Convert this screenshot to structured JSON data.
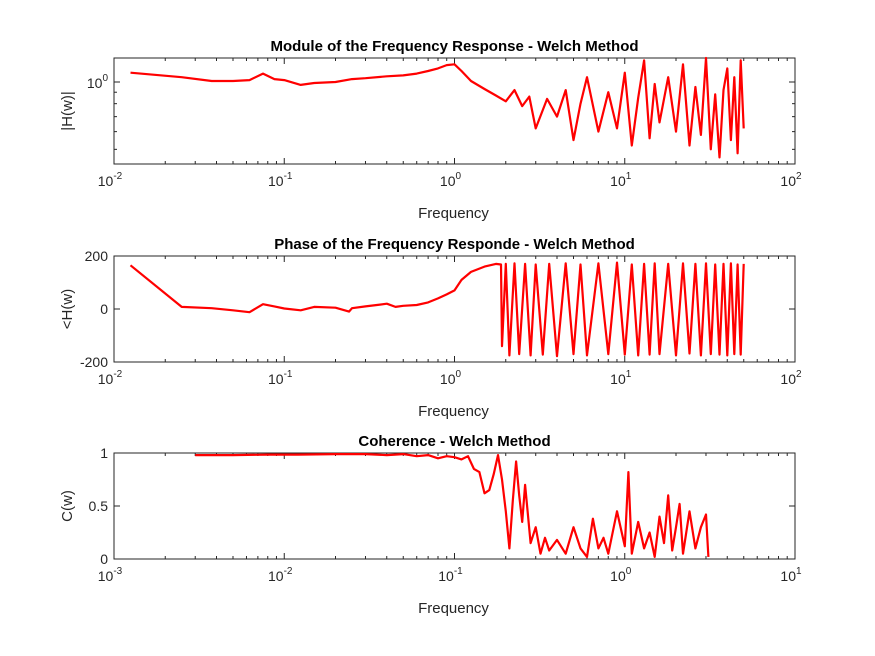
{
  "chart_data": [
    {
      "type": "line",
      "title": "Module of the Frequency Response - Welch Method",
      "xlabel": "Frequency",
      "ylabel": "|H(w)|",
      "xscale": "log",
      "yscale": "log",
      "xlim": [
        0.01,
        100
      ],
      "ylim": [
        0.43,
        1.28
      ],
      "xticks": [
        {
          "base": "10",
          "exp": "-2"
        },
        {
          "base": "10",
          "exp": "-1"
        },
        {
          "base": "10",
          "exp": "0"
        },
        {
          "base": "10",
          "exp": "1"
        },
        {
          "base": "10",
          "exp": "2"
        }
      ],
      "yticks": [
        {
          "base": "10",
          "exp": "0"
        }
      ],
      "grid": false,
      "color": "#ff0000",
      "series": [
        {
          "x": [
            0.0125,
            0.025,
            0.0375,
            0.05,
            0.0625,
            0.075,
            0.0875,
            0.1,
            0.125,
            0.15,
            0.2,
            0.25,
            0.3,
            0.4,
            0.5,
            0.6,
            0.7,
            0.8,
            0.9,
            1.0,
            1.1,
            1.25,
            1.5,
            1.75,
            2.0,
            2.25,
            2.5,
            2.75,
            3.0,
            3.5,
            4.0,
            4.5,
            5.0,
            5.5,
            6.0,
            7.0,
            8.0,
            9.0,
            10.0,
            11.0,
            12.0,
            13.0,
            14.0,
            15.0,
            16.0,
            18.0,
            20.0,
            22.0,
            24.0,
            26.0,
            28.0,
            30.0,
            32.0,
            34.0,
            36.0,
            38.0,
            40.0,
            42.0,
            44.0,
            46.0,
            48.0,
            50.0
          ],
          "y": [
            1.1,
            1.05,
            1.01,
            1.01,
            1.02,
            1.09,
            1.03,
            1.02,
            0.97,
            0.99,
            1.0,
            1.03,
            1.04,
            1.06,
            1.07,
            1.09,
            1.12,
            1.15,
            1.19,
            1.2,
            1.12,
            1.01,
            0.93,
            0.87,
            0.82,
            0.92,
            0.78,
            0.86,
            0.62,
            0.84,
            0.7,
            0.92,
            0.55,
            0.8,
            1.05,
            0.6,
            0.9,
            0.62,
            1.1,
            0.52,
            0.85,
            1.25,
            0.56,
            0.98,
            0.66,
            1.05,
            0.6,
            1.2,
            0.52,
            0.95,
            0.58,
            1.28,
            0.5,
            0.88,
            0.46,
            0.92,
            1.15,
            0.55,
            1.05,
            0.48,
            1.25,
            0.62
          ]
        }
      ]
    },
    {
      "type": "line",
      "title": "Phase of the Frequency Responde - Welch Method",
      "xlabel": "Frequency",
      "ylabel": "<H(w)",
      "xscale": "log",
      "yscale": "linear",
      "xlim": [
        0.01,
        100
      ],
      "ylim": [
        -200,
        200
      ],
      "xticks": [
        {
          "base": "10",
          "exp": "-2"
        },
        {
          "base": "10",
          "exp": "-1"
        },
        {
          "base": "10",
          "exp": "0"
        },
        {
          "base": "10",
          "exp": "1"
        },
        {
          "base": "10",
          "exp": "2"
        }
      ],
      "yticks": [
        "200",
        "0",
        "-200"
      ],
      "ytick_values": [
        200,
        0,
        -200
      ],
      "grid": false,
      "color": "#ff0000",
      "series": [
        {
          "x": [
            0.0125,
            0.025,
            0.0375,
            0.05,
            0.0625,
            0.075,
            0.0875,
            0.1,
            0.125,
            0.15,
            0.2,
            0.24,
            0.25,
            0.3,
            0.35,
            0.4,
            0.45,
            0.5,
            0.6,
            0.7,
            0.8,
            0.9,
            1.0,
            1.1,
            1.25,
            1.5,
            1.75,
            1.875,
            1.9,
            2.0,
            2.1,
            2.25,
            2.4,
            2.6,
            2.8,
            3.0,
            3.3,
            3.6,
            4.0,
            4.5,
            5.0,
            5.5,
            6.0,
            7.0,
            8.0,
            9.0,
            10.0,
            11.0,
            12.0,
            13.0,
            14.0,
            15.0,
            16.0,
            18.0,
            20.0,
            22.0,
            24.0,
            26.0,
            28.0,
            30.0,
            32.0,
            34.0,
            36.0,
            38.0,
            40.0,
            42.0,
            44.0,
            46.0,
            48.0,
            50.0
          ],
          "y": [
            165,
            8,
            3,
            -5,
            -12,
            18,
            10,
            2,
            -5,
            8,
            5,
            -10,
            3,
            10,
            15,
            20,
            8,
            12,
            15,
            25,
            40,
            55,
            70,
            110,
            140,
            160,
            170,
            168,
            -140,
            170,
            -175,
            172,
            -170,
            170,
            -175,
            168,
            -172,
            170,
            -178,
            172,
            -170,
            168,
            -175,
            172,
            -170,
            175,
            -172,
            168,
            -175,
            170,
            -172,
            172,
            -170,
            170,
            -175,
            172,
            -168,
            170,
            -175,
            172,
            -170,
            168,
            -172,
            170,
            -175,
            172,
            -170,
            168,
            -172,
            170
          ]
        }
      ]
    },
    {
      "type": "line",
      "title": "Coherence - Welch Method",
      "xlabel": "Frequency",
      "ylabel": "C(w)",
      "xscale": "log",
      "yscale": "linear",
      "xlim": [
        0.001,
        10
      ],
      "ylim": [
        0,
        1
      ],
      "xticks": [
        {
          "base": "10",
          "exp": "-3"
        },
        {
          "base": "10",
          "exp": "-2"
        },
        {
          "base": "10",
          "exp": "-1"
        },
        {
          "base": "10",
          "exp": "0"
        },
        {
          "base": "10",
          "exp": "1"
        }
      ],
      "yticks": [
        "1",
        "0.5",
        "0"
      ],
      "ytick_values": [
        1,
        0.5,
        0
      ],
      "grid": false,
      "color": "#ff0000",
      "series": [
        {
          "x": [
            0.003,
            0.005,
            0.008,
            0.012,
            0.02,
            0.03,
            0.04,
            0.05,
            0.06,
            0.07,
            0.08,
            0.09,
            0.1,
            0.11,
            0.12,
            0.13,
            0.14,
            0.15,
            0.16,
            0.17,
            0.18,
            0.19,
            0.2,
            0.21,
            0.22,
            0.23,
            0.24,
            0.25,
            0.26,
            0.28,
            0.3,
            0.32,
            0.34,
            0.36,
            0.4,
            0.45,
            0.5,
            0.55,
            0.6,
            0.65,
            0.7,
            0.75,
            0.8,
            0.9,
            1.0,
            1.05,
            1.1,
            1.2,
            1.3,
            1.4,
            1.5,
            1.6,
            1.7,
            1.8,
            1.9,
            2.0,
            2.1,
            2.2,
            2.4,
            2.6,
            2.8,
            3.0,
            3.1
          ],
          "y": [
            0.98,
            0.98,
            0.985,
            0.985,
            0.99,
            0.99,
            0.98,
            0.99,
            0.97,
            0.98,
            0.95,
            0.97,
            0.96,
            0.94,
            0.97,
            0.85,
            0.82,
            0.62,
            0.65,
            0.8,
            0.98,
            0.75,
            0.45,
            0.1,
            0.55,
            0.92,
            0.6,
            0.35,
            0.7,
            0.15,
            0.3,
            0.05,
            0.2,
            0.08,
            0.18,
            0.05,
            0.3,
            0.1,
            0.02,
            0.38,
            0.1,
            0.2,
            0.05,
            0.45,
            0.12,
            0.82,
            0.05,
            0.35,
            0.1,
            0.25,
            0.02,
            0.4,
            0.15,
            0.6,
            0.08,
            0.3,
            0.52,
            0.05,
            0.45,
            0.1,
            0.3,
            0.42,
            0.02
          ]
        }
      ]
    }
  ]
}
